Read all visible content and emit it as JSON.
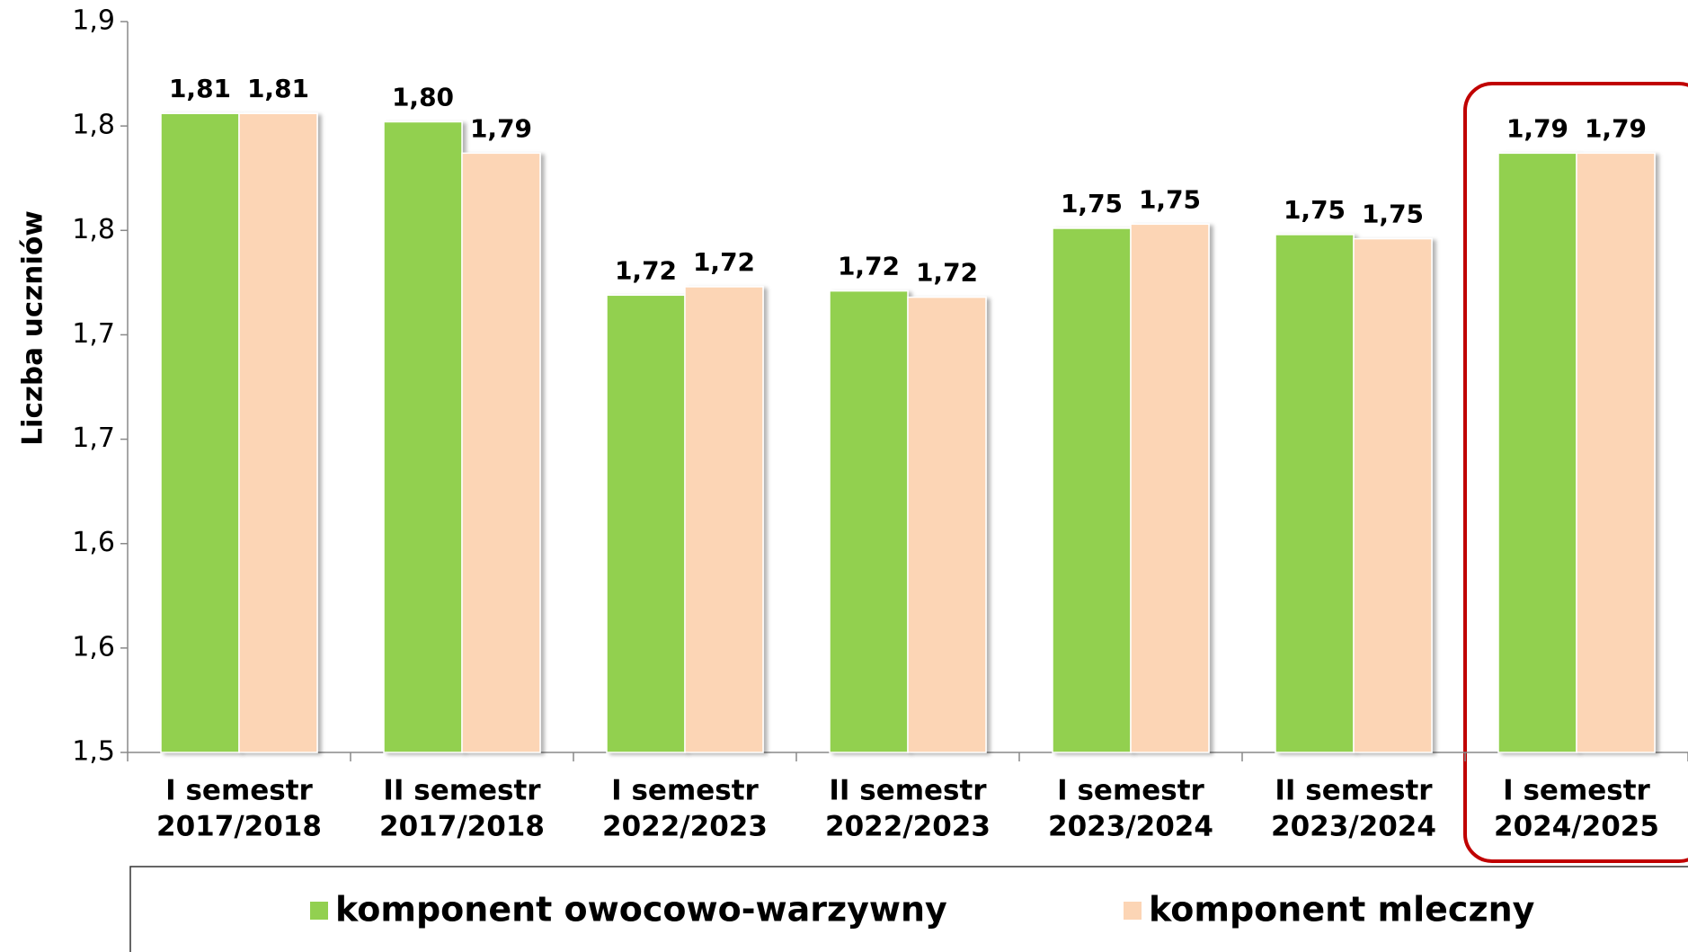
{
  "chart_data": {
    "type": "bar",
    "y_label": "Liczba uczniów",
    "categories": [
      [
        "I semestr",
        "2017/2018"
      ],
      [
        "II semestr",
        "2017/2018"
      ],
      [
        "I semestr",
        "2022/2023"
      ],
      [
        "II semestr",
        "2022/2023"
      ],
      [
        "I semestr",
        "2023/2024"
      ],
      [
        "II semestr",
        "2023/2024"
      ],
      [
        "I semestr",
        "2024/2025"
      ]
    ],
    "series": [
      {
        "name": "komponent owocowo-warzywny",
        "color": "#92d050",
        "values": [
          1.806,
          1.802,
          1.719,
          1.721,
          1.751,
          1.748,
          1.787
        ],
        "value_labels": [
          "1,81",
          "1,80",
          "1,72",
          "1,72",
          "1,75",
          "1,75",
          "1,79"
        ]
      },
      {
        "name": "komponent mleczny",
        "color": "#fcd5b5",
        "values": [
          1.806,
          1.787,
          1.723,
          1.718,
          1.753,
          1.746,
          1.787
        ],
        "value_labels": [
          "1,81",
          "1,79",
          "1,72",
          "1,72",
          "1,75",
          "1,75",
          "1,79"
        ]
      }
    ],
    "ylim": [
      1.5,
      1.85
    ],
    "yticks": [
      {
        "value": 1.5,
        "label": "1,5"
      },
      {
        "value": 1.55,
        "label": "1,6"
      },
      {
        "value": 1.6,
        "label": "1,6"
      },
      {
        "value": 1.65,
        "label": "1,7"
      },
      {
        "value": 1.7,
        "label": "1,7"
      },
      {
        "value": 1.75,
        "label": "1,8"
      },
      {
        "value": 1.8,
        "label": "1,8"
      },
      {
        "value": 1.85,
        "label": "1,9"
      }
    ],
    "grid": false,
    "legend": "bottom"
  }
}
